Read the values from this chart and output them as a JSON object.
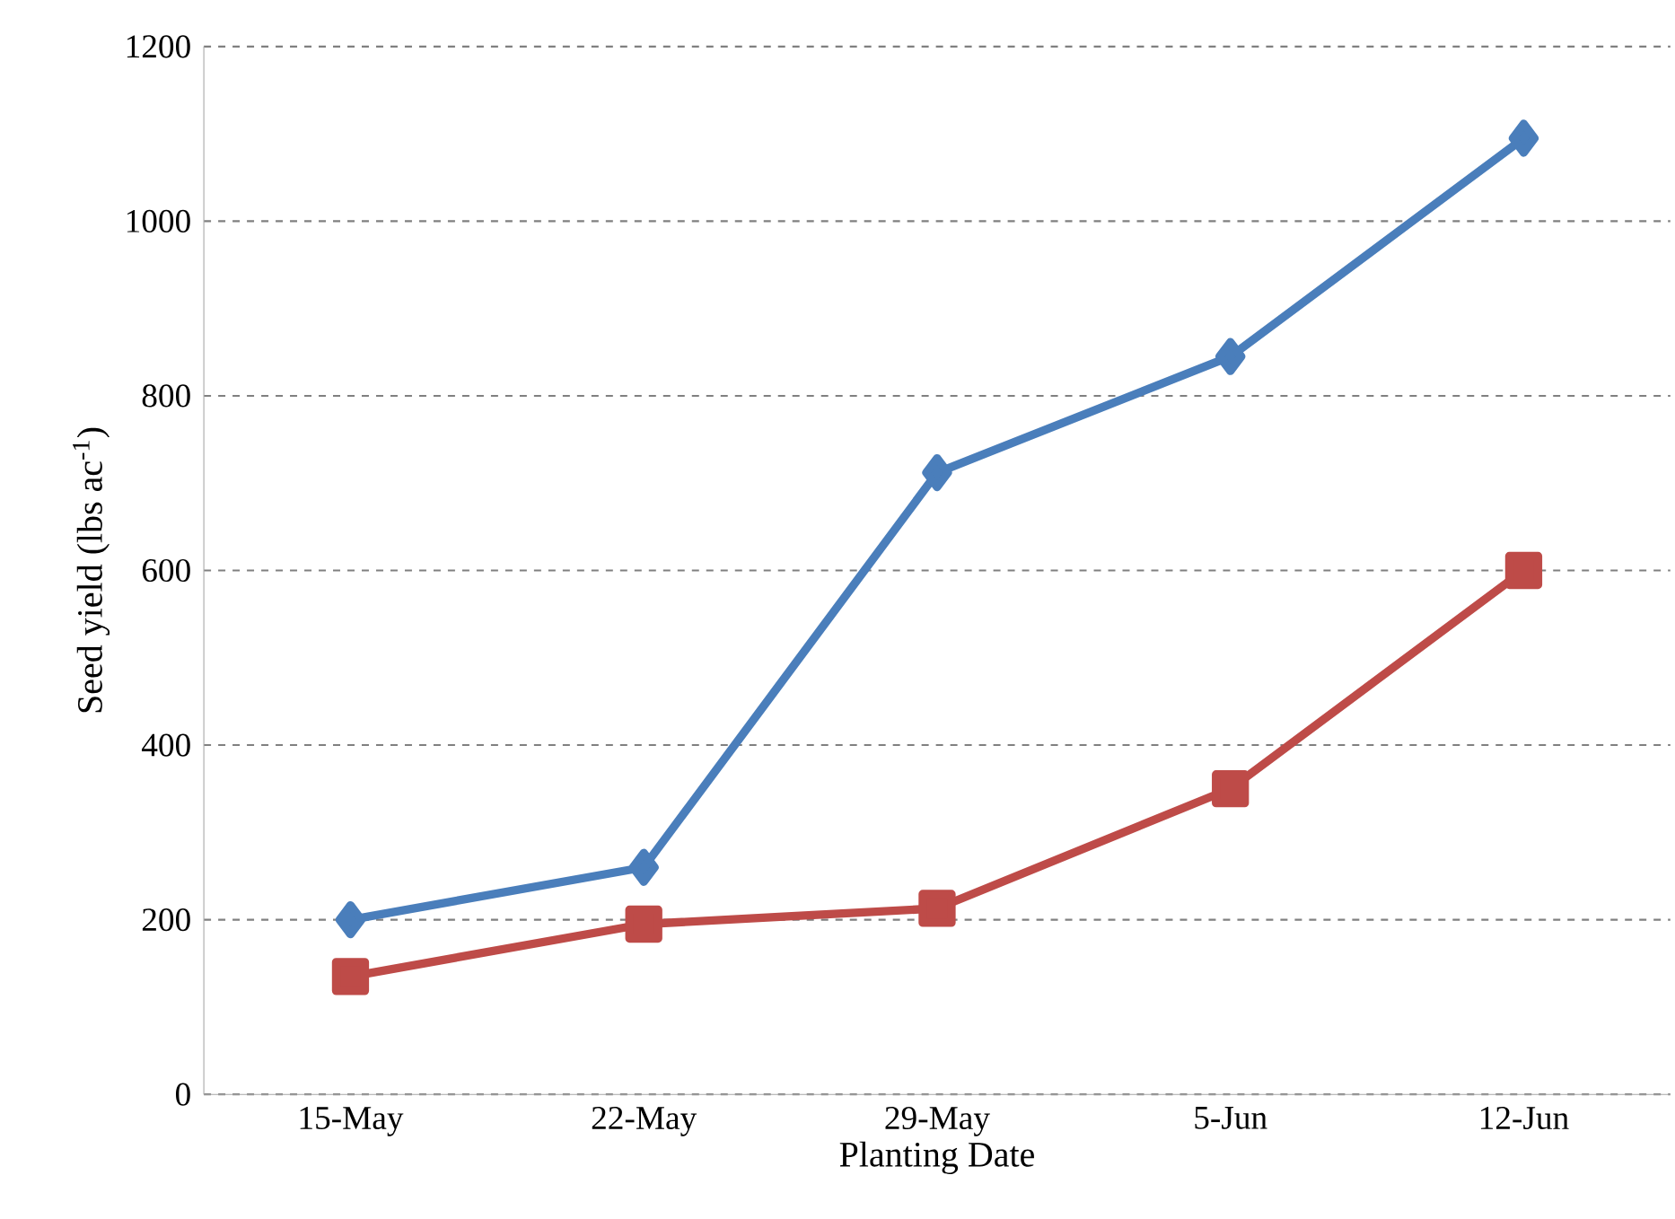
{
  "chart_data": {
    "type": "line",
    "xlabel": "Planting Date",
    "ylabel": "Seed yield (lbs ac$^{-1}$)",
    "categories": [
      "15-May",
      "22-May",
      "29-May",
      "5-Jun",
      "12-Jun"
    ],
    "series": [
      {
        "color": "#4a7ebb",
        "marker": "diamond",
        "values": [
          200,
          260,
          712,
          845,
          1095
        ]
      },
      {
        "color": "#be4b48",
        "marker": "square",
        "values": [
          135,
          195,
          213,
          350,
          600
        ]
      }
    ],
    "ylim": [
      0,
      1200
    ],
    "yticks": [
      0,
      200,
      400,
      600,
      800,
      1000,
      1200
    ],
    "grid": "y",
    "line_style": "solid"
  }
}
